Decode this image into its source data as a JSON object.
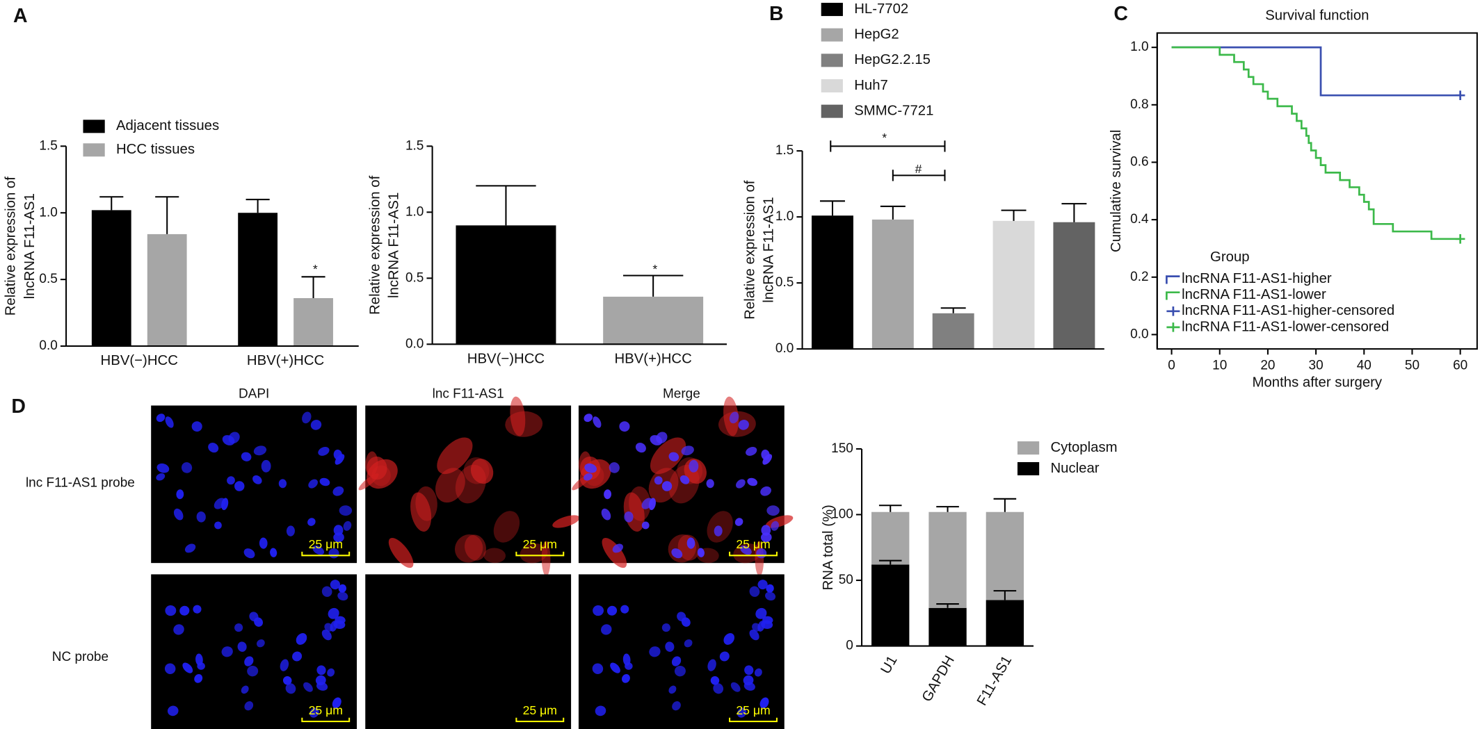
{
  "chart_data": [
    {
      "type": "bar",
      "panel": "A",
      "categories": [
        "HBV(−)HCC",
        "HBV(+)HCC"
      ],
      "series": [
        {
          "name": "Adjacent tissues",
          "color": "#000000",
          "values": [
            1.02,
            1.0
          ],
          "errors": [
            0.1,
            0.1
          ]
        },
        {
          "name": "HCC tissues",
          "color": "#a6a6a6",
          "values": [
            0.84,
            0.36
          ],
          "errors": [
            0.28,
            0.16
          ]
        }
      ],
      "y_label": [
        "Relative expression of",
        "lncRNA F11-AS1"
      ],
      "ylim": [
        0,
        1.5
      ],
      "yticks": [
        {
          "value": 0,
          "label": "0.0"
        },
        {
          "value": 0.5,
          "label": "0.5"
        },
        {
          "value": 1,
          "label": "1.0"
        },
        {
          "value": 1.5,
          "label": "1.5"
        }
      ],
      "annotations": [
        "*"
      ]
    },
    {
      "type": "bar",
      "categories": [
        "HBV(−)HCC",
        "HBV(+)HCC"
      ],
      "values": [
        0.9,
        0.36
      ],
      "errors": [
        0.3,
        0.16
      ],
      "colors": [
        "#000000",
        "#a6a6a6"
      ],
      "y_label": [
        "Relative expression of",
        "lncRNA F11-AS1"
      ],
      "ylim": [
        0,
        1.5
      ],
      "yticks": [
        {
          "value": 0,
          "label": "0.0"
        },
        {
          "value": 0.5,
          "label": "0.5"
        },
        {
          "value": 1,
          "label": "1.0"
        },
        {
          "value": 1.5,
          "label": "1.5"
        }
      ],
      "annotations": [
        "*"
      ]
    },
    {
      "type": "bar",
      "panel": "B",
      "categories": [
        "HL-7702",
        "HepG2",
        "HepG2.2.15",
        "Huh7",
        "SMMC-7721"
      ],
      "values": [
        1.01,
        0.98,
        0.27,
        0.97,
        0.96
      ],
      "errors": [
        0.11,
        0.1,
        0.04,
        0.08,
        0.14
      ],
      "colors": [
        "#000000",
        "#a6a6a6",
        "#808080",
        "#d9d9d9",
        "#636363"
      ],
      "legend": true,
      "y_label": [
        "Relative expression of",
        "lncRNA F11-AS1"
      ],
      "ylim": [
        0,
        1.5
      ],
      "yticks": [
        {
          "value": 0,
          "label": "0.0"
        },
        {
          "value": 0.5,
          "label": "0.5"
        },
        {
          "value": 1,
          "label": "1.0"
        },
        {
          "value": 1.5,
          "label": "1.5"
        }
      ],
      "annotations": [
        "*",
        "#"
      ]
    },
    {
      "type": "line",
      "panel": "C",
      "title": "Survival function",
      "x_label": "Months after surgery",
      "y_label": "Cumulative survival",
      "xlim": [
        -3,
        63.5
      ],
      "ylim": [
        -0.05,
        1.05
      ],
      "xticks": [
        0,
        10,
        20,
        30,
        40,
        50,
        60
      ],
      "yticks": [
        {
          "value": 0,
          "label": "0.0"
        },
        {
          "value": 0.2,
          "label": "0.2"
        },
        {
          "value": 0.4,
          "label": "0.4"
        },
        {
          "value": 0.6,
          "label": "0.6"
        },
        {
          "value": 0.8,
          "label": "0.8"
        },
        {
          "value": 1,
          "label": "1.0"
        }
      ],
      "legend_title": "Group",
      "series": [
        {
          "name": "lncRNA F11-AS1-higher",
          "color": "#3a4fb0",
          "x": [
            0,
            31,
            31,
            60
          ],
          "values": [
            1,
            1,
            0.833,
            0.833
          ]
        },
        {
          "name": "lncRNA F11-AS1-lower",
          "color": "#3cb94a",
          "x": [
            0,
            10,
            10,
            13,
            13,
            15,
            15,
            16,
            16,
            17,
            17,
            19,
            19,
            20,
            20,
            22,
            22,
            25,
            25,
            26,
            26,
            27,
            27,
            28,
            28,
            28.5,
            28.5,
            29,
            29,
            30,
            30,
            31,
            31,
            32,
            32,
            35,
            35,
            37,
            37,
            39,
            39,
            40,
            40,
            41,
            41,
            42,
            42,
            46,
            46,
            54,
            54,
            60
          ],
          "values": [
            1,
            1,
            0.974,
            0.974,
            0.949,
            0.949,
            0.923,
            0.923,
            0.897,
            0.897,
            0.872,
            0.872,
            0.846,
            0.846,
            0.821,
            0.821,
            0.795,
            0.795,
            0.769,
            0.769,
            0.744,
            0.744,
            0.718,
            0.718,
            0.692,
            0.692,
            0.667,
            0.667,
            0.641,
            0.641,
            0.615,
            0.615,
            0.59,
            0.59,
            0.564,
            0.564,
            0.538,
            0.538,
            0.513,
            0.513,
            0.487,
            0.487,
            0.462,
            0.462,
            0.436,
            0.436,
            0.385,
            0.385,
            0.359,
            0.359,
            0.333,
            0.333
          ]
        },
        {
          "name": "lncRNA F11-AS1-higher-censored",
          "color": "#3a4fb0",
          "marker": "+",
          "x": [
            60
          ],
          "values": [
            0.833
          ]
        },
        {
          "name": "lncRNA F11-AS1-lower-censored",
          "color": "#3cb94a",
          "marker": "+",
          "x": [
            60
          ],
          "values": [
            0.333
          ]
        }
      ]
    },
    {
      "type": "bar",
      "stacked": true,
      "categories": [
        "U1",
        "GAPDH",
        "F11-AS1"
      ],
      "series": [
        {
          "name": "Nuclear",
          "color": "#000000",
          "values": [
            62,
            29,
            35
          ],
          "errors": [
            3,
            3,
            7
          ]
        },
        {
          "name": "Cytoplasm",
          "color": "#a6a6a6",
          "values": [
            40,
            73,
            67
          ],
          "errors": [
            5,
            4,
            10
          ]
        }
      ],
      "y_label": [
        "RNA total (%)"
      ],
      "ylim": [
        0,
        150
      ],
      "yticks": [
        0,
        50,
        100,
        150
      ]
    }
  ],
  "microscopy": {
    "panel": "D",
    "columns": [
      "DAPI",
      "lnc F11-AS1",
      "Merge"
    ],
    "rows": [
      "lnc F11-AS1 probe",
      "NC probe"
    ],
    "scale_bar": "25 μm"
  }
}
